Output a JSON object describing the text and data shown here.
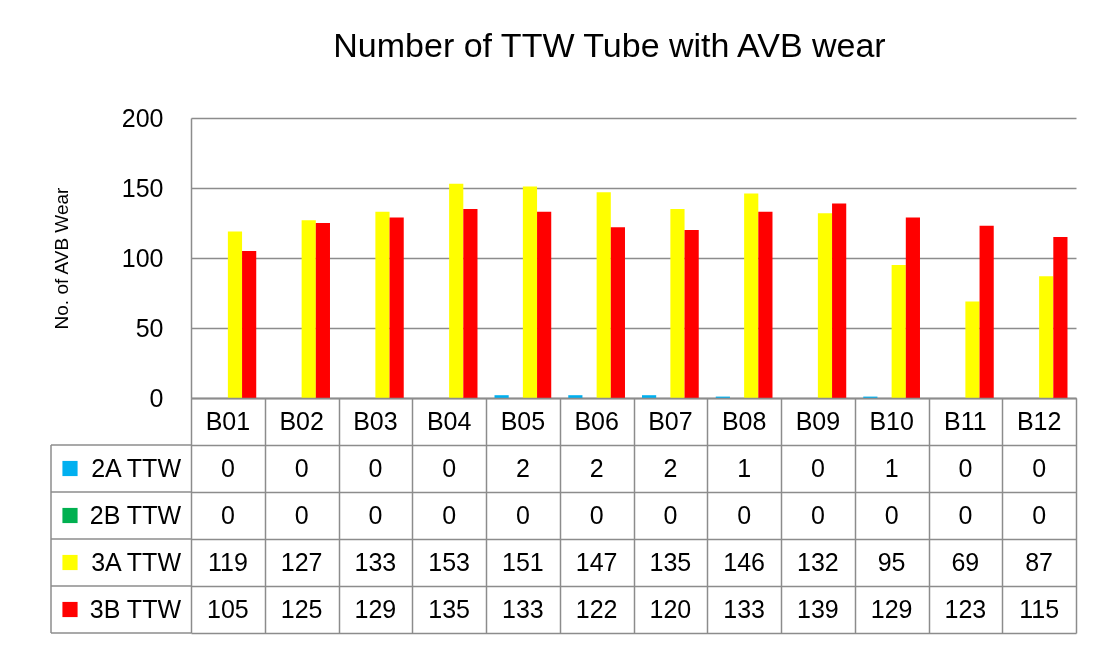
{
  "chart_data": {
    "type": "bar",
    "title": "Number of TTW Tube with AVB wear",
    "ylabel": "No. of AVB Wear",
    "categories": [
      "B01",
      "B02",
      "B03",
      "B04",
      "B05",
      "B06",
      "B07",
      "B08",
      "B09",
      "B10",
      "B11",
      "B12"
    ],
    "series": [
      {
        "name": "2A TTW",
        "color": "#00b0f0",
        "values": [
          0,
          0,
          0,
          0,
          2,
          2,
          2,
          1,
          0,
          1,
          0,
          0
        ]
      },
      {
        "name": "2B TTW",
        "color": "#00b050",
        "values": [
          0,
          0,
          0,
          0,
          0,
          0,
          0,
          0,
          0,
          0,
          0,
          0
        ]
      },
      {
        "name": "3A TTW",
        "color": "#ffff00",
        "values": [
          119,
          127,
          133,
          153,
          151,
          147,
          135,
          146,
          132,
          95,
          69,
          87
        ]
      },
      {
        "name": "3B TTW",
        "color": "#ff0000",
        "values": [
          105,
          125,
          129,
          135,
          133,
          122,
          120,
          133,
          139,
          129,
          123,
          115
        ]
      }
    ],
    "ylim": [
      0,
      200
    ],
    "yticks": [
      0,
      50,
      100,
      150,
      200
    ],
    "grid": "y",
    "legend": "bottom",
    "data_labels": true
  }
}
